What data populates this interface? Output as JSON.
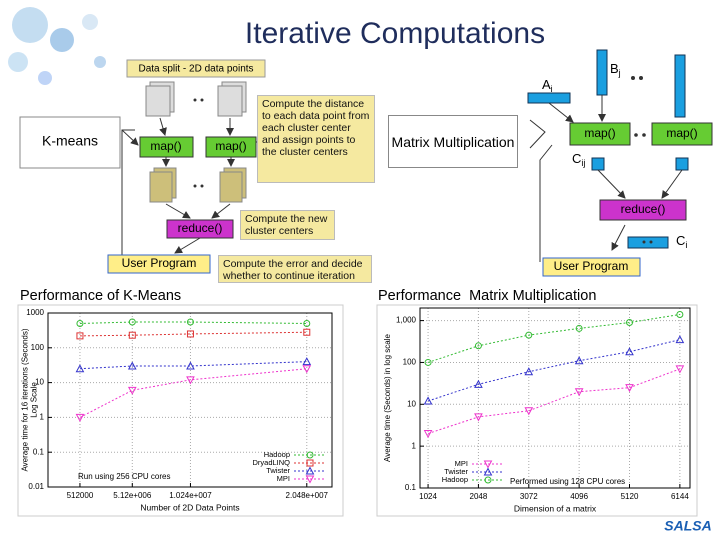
{
  "title": "Iterative Computations",
  "kmeans_diagram": {
    "label": "K-means",
    "data_split": "Data split - 2D data points",
    "map": [
      "map()",
      "map()"
    ],
    "map_note": "Compute the distance to each data point from each cluster center and assign points to the cluster centers",
    "reduce": "reduce()",
    "reduce_note": "Compute the new cluster centers",
    "user_program": "User Program",
    "user_note": "Compute the error and decide whether to continue iteration"
  },
  "matrix_diagram": {
    "label": "Matrix Multiplication",
    "a": "A",
    "a_sub": "i",
    "b": "B",
    "b_sub": "j",
    "map": [
      "map()",
      "map()"
    ],
    "c": "C",
    "c_sub": "ij",
    "reduce": "reduce()",
    "ci": "C",
    "ci_sub": "i",
    "user_program": "User Program"
  },
  "logo": "SALSA",
  "chart_data": [
    {
      "type": "line",
      "title": "Performance of K-Means",
      "xlabel": "Number of 2D Data Points",
      "ylabel": [
        "Average time for 16 iterations (Seconds)",
        "Log Scale"
      ],
      "annotation": "Run using 256 CPU cores",
      "x": [
        512000,
        5120000,
        10240000,
        20480000
      ],
      "xlim": [
        -2300000,
        22700000
      ],
      "xticks": [
        512000,
        {
          "value": 5120000,
          "label": "5.12e+006"
        },
        {
          "value": 10240000,
          "label": "1.024e+007"
        },
        {
          "value": 20480000,
          "label": "2.048e+007"
        }
      ],
      "yscale": "log",
      "ylim": [
        0.01,
        1000
      ],
      "yticks": [
        0.01,
        0.1,
        1,
        10,
        100,
        1000
      ],
      "grid": true,
      "legend": "lower right",
      "series": [
        {
          "name": "Hadoop",
          "color": "#33bb33",
          "marker": "circle",
          "values": [
            500,
            550,
            550,
            500
          ]
        },
        {
          "name": "DryadLINQ",
          "color": "#dd3333",
          "marker": "square",
          "values": [
            220,
            230,
            250,
            280
          ]
        },
        {
          "name": "Twister",
          "color": "#3333cc",
          "marker": "triangle",
          "values": [
            25,
            30,
            30,
            40
          ]
        },
        {
          "name": "MPI",
          "color": "#ee33cc",
          "marker": "triangle-down",
          "values": [
            1,
            6,
            12,
            25
          ]
        }
      ]
    },
    {
      "type": "line",
      "title": "Performance  Matrix Multiplication",
      "xlabel": "Dimension of a matrix",
      "ylabel": [
        "Average time (Seconds) in log scale"
      ],
      "annotation": "Performed using 128 CPU cores",
      "x": [
        1024,
        2048,
        3072,
        4096,
        5120,
        6144
      ],
      "xlim": [
        860,
        6350
      ],
      "xticks": [
        1024,
        2048,
        3072,
        4096,
        5120,
        6144
      ],
      "yscale": "log",
      "ylim": [
        0.1,
        2000
      ],
      "yticks": [
        0.1,
        1,
        10,
        100,
        {
          "value": 1000,
          "label": "1,000"
        }
      ],
      "grid": true,
      "legend": "lower left",
      "series": [
        {
          "name": "MPI",
          "color": "#ee33cc",
          "marker": "triangle-down",
          "values": [
            2,
            5,
            7,
            20,
            25,
            70
          ]
        },
        {
          "name": "Twister",
          "color": "#3333cc",
          "marker": "triangle",
          "values": [
            12,
            30,
            60,
            110,
            180,
            350
          ]
        },
        {
          "name": "Hadoop",
          "color": "#33bb33",
          "marker": "circle",
          "values": [
            100,
            250,
            450,
            650,
            900,
            1400
          ]
        }
      ]
    }
  ]
}
